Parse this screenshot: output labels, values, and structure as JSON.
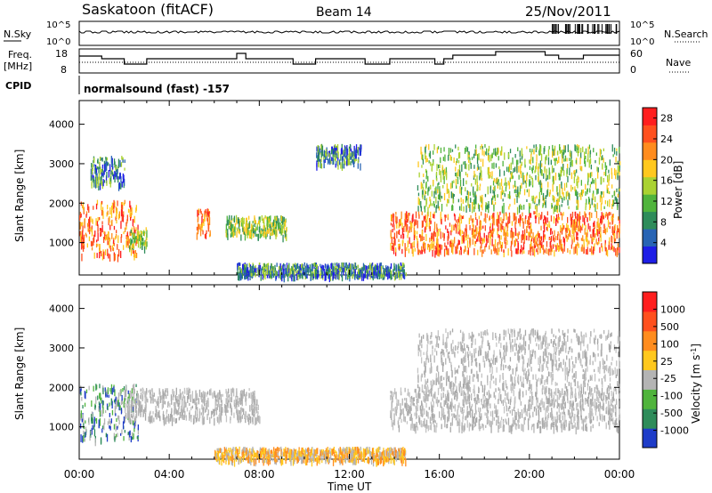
{
  "header": {
    "station": "Saskatoon (fitACF)",
    "beam": "Beam 14",
    "date": "25/Nov/2011"
  },
  "strip": {
    "nsky_label": "N.Sky",
    "nsearch_label": "N.Search",
    "sky_tick_top": "10^5",
    "sky_tick_bottom": "10^0",
    "search_tick_top": "10^5",
    "search_tick_bottom": "10^0",
    "freq_label_1": "Freq.",
    "freq_label_2": "[MHz]",
    "freq_tick_top": "18",
    "freq_tick_bottom": "8",
    "nave_label": "Nave",
    "nave_tick_top": "60",
    "nave_tick_bottom": "0",
    "cpid_label": "CPID",
    "cpid_value": "normalsound (fast) -157"
  },
  "chart_data": [
    {
      "type": "heatmap",
      "title": "",
      "xlabel": "",
      "ylabel": "Slant Range [km]",
      "yticks": [
        "1000",
        "2000",
        "3000",
        "4000"
      ],
      "ylim": [
        180,
        4600
      ],
      "xlim_hours": [
        0,
        24
      ],
      "colorbar": {
        "label": "Power [dB]",
        "ticks": [
          "4",
          "8",
          "12",
          "16",
          "20",
          "24",
          "28"
        ],
        "range": [
          0,
          30
        ],
        "colors": [
          "#1e1ee6",
          "#2864b4",
          "#2e8c5a",
          "#50b43c",
          "#aad232",
          "#ffc81e",
          "#ff8c1e",
          "#ff501e",
          "#ff1e1e"
        ]
      },
      "regions": [
        {
          "t_start": 0.0,
          "t_end": 2.6,
          "r_min": 700,
          "r_max": 2100,
          "level": "high"
        },
        {
          "t_start": 0.5,
          "t_end": 2.0,
          "r_min": 2500,
          "r_max": 3200,
          "level": "low"
        },
        {
          "t_start": 2.2,
          "t_end": 3.0,
          "r_min": 900,
          "r_max": 1400,
          "level": "mid"
        },
        {
          "t_start": 5.2,
          "t_end": 5.8,
          "r_min": 1200,
          "r_max": 1900,
          "level": "high"
        },
        {
          "t_start": 6.5,
          "t_end": 9.2,
          "r_min": 1200,
          "r_max": 1700,
          "level": "mid"
        },
        {
          "t_start": 10.5,
          "t_end": 12.5,
          "r_min": 3000,
          "r_max": 3500,
          "level": "low"
        },
        {
          "t_start": 13.8,
          "t_end": 24.0,
          "r_min": 800,
          "r_max": 1800,
          "level": "high"
        },
        {
          "t_start": 15.0,
          "t_end": 24.0,
          "r_min": 1900,
          "r_max": 3500,
          "level": "mid"
        },
        {
          "t_start": 7.0,
          "t_end": 14.5,
          "r_min": 180,
          "r_max": 500,
          "level": "low"
        }
      ]
    },
    {
      "type": "heatmap",
      "title": "",
      "xlabel": "Time UT",
      "ylabel": "Slant Range [km]",
      "yticks": [
        "1000",
        "2000",
        "3000",
        "4000"
      ],
      "xticks": [
        "00:00",
        "04:00",
        "08:00",
        "12:00",
        "16:00",
        "20:00",
        "00:00"
      ],
      "ylim": [
        180,
        4600
      ],
      "xlim_hours": [
        0,
        24
      ],
      "colorbar": {
        "label": "Velocity [m s",
        "label_sup": "-1",
        "label_close": "]",
        "ticks": [
          "1000",
          "500",
          "100",
          "25",
          "-25",
          "-100",
          "-500",
          "-1000"
        ],
        "colors": [
          "#1e3cc8",
          "#2e8c5a",
          "#50b43c",
          "#b4b4b4",
          "#ffc81e",
          "#ff8c1e",
          "#ff501e",
          "#ff1e1e"
        ]
      },
      "regions": [
        {
          "t_start": 0.0,
          "t_end": 2.6,
          "r_min": 700,
          "r_max": 2100,
          "level": "green"
        },
        {
          "t_start": 2.0,
          "t_end": 8.0,
          "r_min": 1200,
          "r_max": 2000,
          "level": "gray"
        },
        {
          "t_start": 13.8,
          "t_end": 24.0,
          "r_min": 1000,
          "r_max": 2000,
          "level": "gray"
        },
        {
          "t_start": 15.0,
          "t_end": 24.0,
          "r_min": 2000,
          "r_max": 3500,
          "level": "gray"
        },
        {
          "t_start": 6.0,
          "t_end": 14.5,
          "r_min": 180,
          "r_max": 500,
          "level": "yellow"
        }
      ]
    }
  ]
}
